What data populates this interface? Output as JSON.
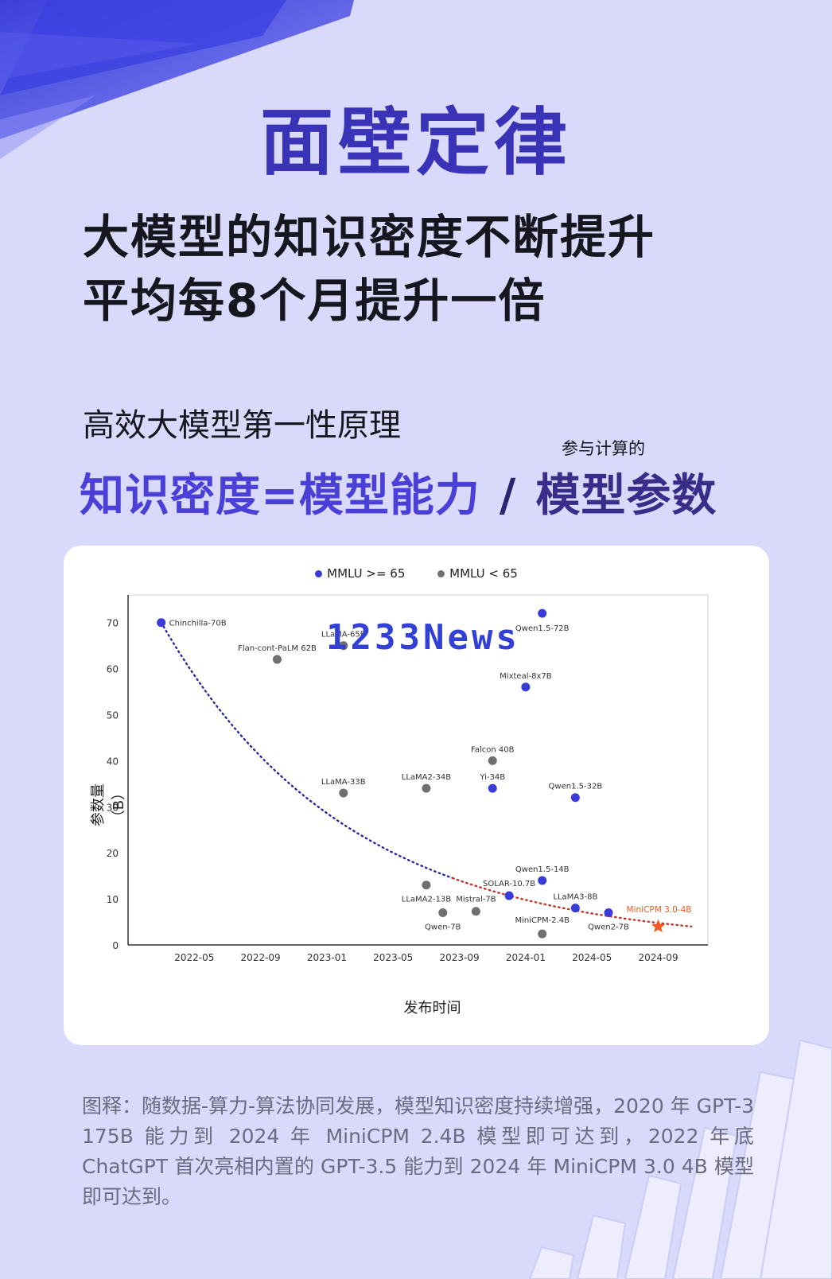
{
  "title": "面壁定律",
  "headline": {
    "line1": "大模型的知识密度不断提升",
    "line2": "平均每8个月提升一倍"
  },
  "principle": "高效大模型第一性原理",
  "formula": {
    "left": "知识密度=模型能力",
    "slash": "/",
    "right": "模型参数",
    "note": "参与计算的"
  },
  "watermark": "1233News",
  "caption": "图释：随数据-算力-算法协同发展，模型知识密度持续增强，2020 年 GPT-3 175B 能力到 2024 年 MiniCPM 2.4B 模型即可达到，2022 年底 ChatGPT 首次亮相内置的 GPT-3.5 能力到 2024 年 MiniCPM 3.0 4B 模型即可达到。",
  "colors": {
    "high": "#3a3ad8",
    "low": "#707070",
    "highlight": "#f05a22",
    "trend_blue": "#2a2a9a",
    "trend_red": "#c0392b"
  },
  "chart_data": {
    "type": "scatter",
    "legend": [
      {
        "label": "MMLU >= 65",
        "color": "#3a3ad8"
      },
      {
        "label": "MMLU  <  65",
        "color": "#707070"
      }
    ],
    "legend_position": "top-center",
    "xlabel": "发布时间",
    "ylabel": "参数量（B）",
    "x_ticks": [
      "2022-05",
      "2022-09",
      "2023-01",
      "2023-05",
      "2023-09",
      "2024-01",
      "2024-05",
      "2024-09"
    ],
    "y_ticks": [
      0,
      10,
      20,
      30,
      40,
      50,
      60,
      70
    ],
    "xlim": [
      "2022-01",
      "2024-12"
    ],
    "ylim": [
      0,
      76
    ],
    "grid": false,
    "points": [
      {
        "label": "Chinchilla-70B",
        "date": "2022-03",
        "y": 70,
        "group": "high"
      },
      {
        "label": "Flan-cont-PaLM 62B",
        "date": "2022-10",
        "y": 62,
        "group": "low"
      },
      {
        "label": "LLaMA-65B",
        "date": "2023-02",
        "y": 65,
        "group": "low"
      },
      {
        "label": "LLaMA-33B",
        "date": "2023-02",
        "y": 33,
        "group": "low"
      },
      {
        "label": "LLaMA2-34B",
        "date": "2023-07",
        "y": 34,
        "group": "low"
      },
      {
        "label": "LLaMA2-13B",
        "date": "2023-07",
        "y": 13,
        "group": "low"
      },
      {
        "label": "Qwen-7B",
        "date": "2023-08",
        "y": 7,
        "group": "low"
      },
      {
        "label": "Mistral-7B",
        "date": "2023-10",
        "y": 7.3,
        "group": "low"
      },
      {
        "label": "Falcon 40B",
        "date": "2023-11",
        "y": 40,
        "group": "low"
      },
      {
        "label": "Yi-34B",
        "date": "2023-11",
        "y": 34,
        "group": "high"
      },
      {
        "label": "SOLAR-10.7B",
        "date": "2023-12",
        "y": 10.7,
        "group": "high"
      },
      {
        "label": "Mixteal-8x7B",
        "date": "2024-01",
        "y": 56,
        "group": "high"
      },
      {
        "label": "MiniCPM-2.4B",
        "date": "2024-02",
        "y": 2.4,
        "group": "low"
      },
      {
        "label": "Qwen1.5-72B",
        "date": "2024-02",
        "y": 72,
        "group": "high"
      },
      {
        "label": "Qwen1.5-14B",
        "date": "2024-02",
        "y": 14,
        "group": "high"
      },
      {
        "label": "Qwen1.5-32B",
        "date": "2024-04",
        "y": 32,
        "group": "high"
      },
      {
        "label": "LLaMA3-8B",
        "date": "2024-04",
        "y": 8,
        "group": "high"
      },
      {
        "label": "Qwen2-7B",
        "date": "2024-06",
        "y": 7,
        "group": "high"
      },
      {
        "label": "MiniCPM 3.0-4B",
        "date": "2024-09",
        "y": 4,
        "group": "highlight"
      }
    ],
    "trend": {
      "type": "exponential-decay",
      "from": [
        "2022-03",
        70
      ],
      "to": [
        "2024-11",
        4
      ],
      "style": "dotted",
      "colors": [
        "#2a2a9a",
        "#c0392b"
      ]
    }
  }
}
